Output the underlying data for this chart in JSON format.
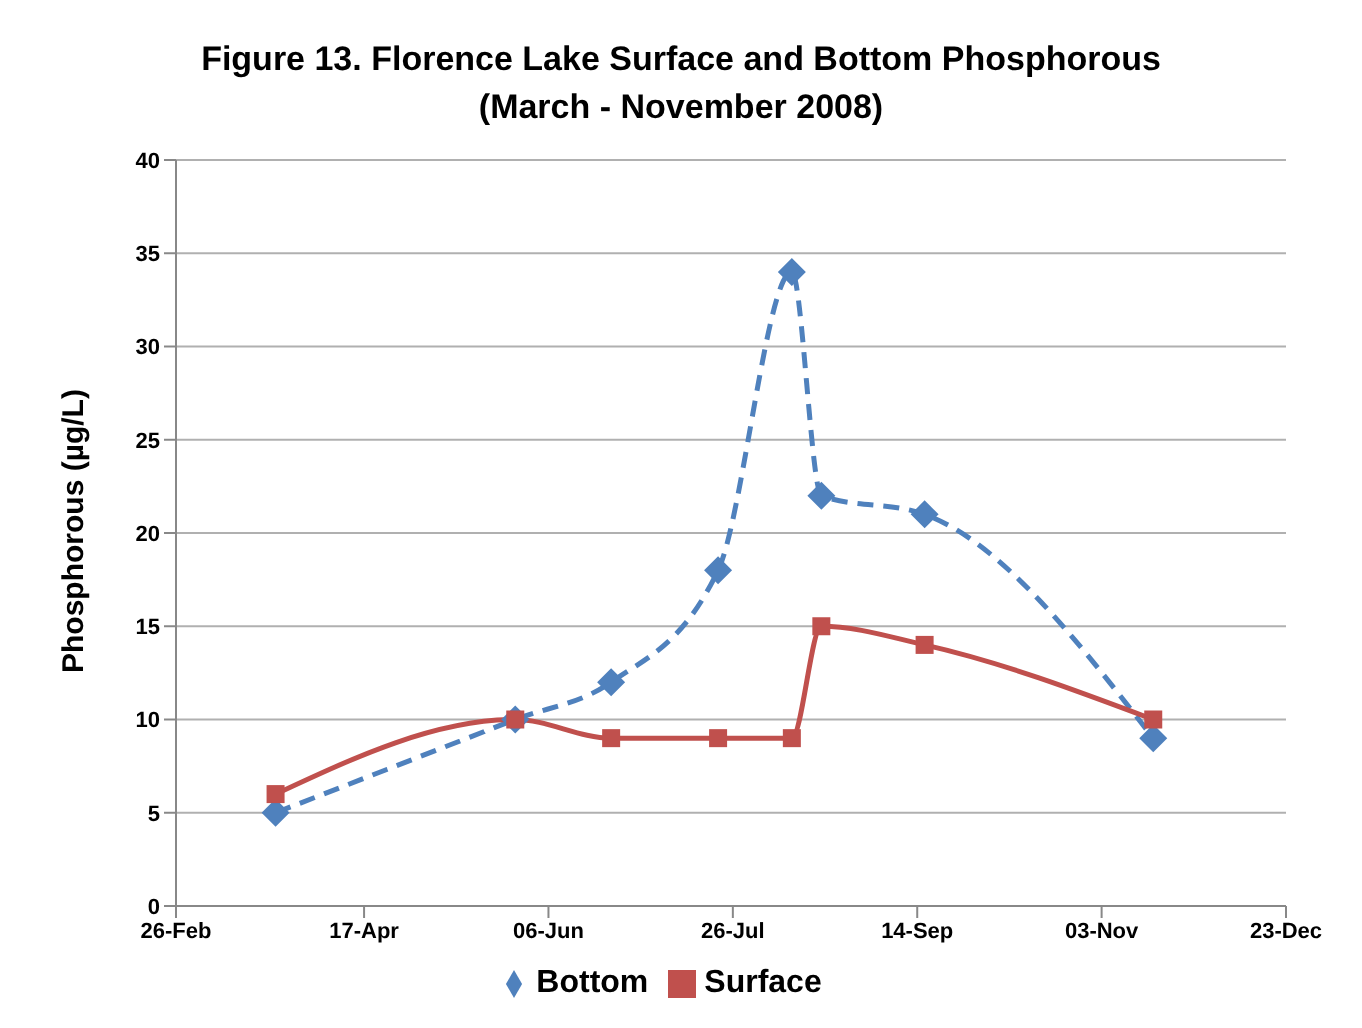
{
  "chart_data": {
    "type": "line",
    "title": "Figure 13. Florence Lake Surface and Bottom Phosphorous",
    "subtitle": "(March - November 2008)",
    "ylabel": "Phosphorous (µg/L)",
    "ylim": [
      0,
      40
    ],
    "yticks": [
      0,
      5,
      10,
      15,
      20,
      25,
      30,
      35,
      40
    ],
    "xlim": [
      "2008-02-26",
      "2008-12-23"
    ],
    "xticks": [
      {
        "value": "2008-02-26",
        "label": "26-Feb"
      },
      {
        "value": "2008-04-17",
        "label": "17-Apr"
      },
      {
        "value": "2008-06-06",
        "label": "06-Jun"
      },
      {
        "value": "2008-07-26",
        "label": "26-Jul"
      },
      {
        "value": "2008-09-14",
        "label": "14-Sep"
      },
      {
        "value": "2008-11-03",
        "label": "03-Nov"
      },
      {
        "value": "2008-12-23",
        "label": "23-Dec"
      }
    ],
    "grid": "y",
    "legend": "bottom",
    "series": [
      {
        "name": "Bottom",
        "color": "#4f81bd",
        "marker": "diamond",
        "line_style": "dashed",
        "x": [
          "2008-03-24",
          "2008-05-28",
          "2008-06-23",
          "2008-07-22",
          "2008-08-11",
          "2008-08-19",
          "2008-09-16",
          "2008-11-17"
        ],
        "values": [
          5,
          10,
          12,
          18,
          34,
          22,
          21,
          9
        ]
      },
      {
        "name": "Surface",
        "color": "#c0504d",
        "marker": "square",
        "line_style": "solid",
        "x": [
          "2008-03-24",
          "2008-05-28",
          "2008-06-23",
          "2008-07-22",
          "2008-08-11",
          "2008-08-19",
          "2008-09-16",
          "2008-11-17"
        ],
        "values": [
          6,
          10,
          9,
          9,
          9,
          15,
          14,
          10
        ]
      }
    ]
  }
}
